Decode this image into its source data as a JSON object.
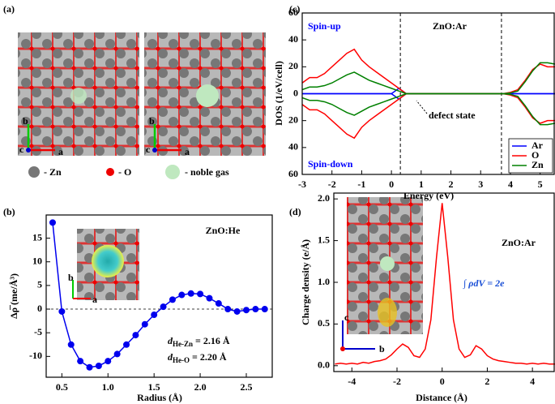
{
  "panel_labels": [
    "(a)",
    "(b)",
    "(c)",
    "(d)"
  ],
  "structure": {
    "axis_labels": [
      "b",
      "c",
      "a"
    ],
    "axis_labels_right": [
      "b",
      "c",
      "a"
    ],
    "legend": [
      "- Zn",
      "- O",
      "- noble gas"
    ]
  },
  "insets": [
    {
      "labels": [
        "b",
        "a"
      ]
    },
    {
      "labels": [
        "c",
        "b"
      ]
    }
  ],
  "chart_data": [
    {
      "type": "line",
      "xlabel": "Energy (eV)",
      "ylabel": "DOS (1/eV/cell)",
      "annotations": [
        "ZnO:Ar",
        "Spin-up",
        "Spin-down",
        "defect state"
      ],
      "x": [
        -3,
        -2.75,
        -2.5,
        -2.25,
        -2,
        -1.75,
        -1.5,
        -1.25,
        -1,
        -0.75,
        -0.5,
        -0.25,
        0,
        0.25,
        0.5,
        0.75,
        1,
        1.25,
        1.5,
        1.75,
        2,
        2.25,
        2.5,
        2.75,
        3,
        3.25,
        3.5,
        3.75,
        4,
        4.25,
        4.5,
        4.75,
        5,
        5.25,
        5.5
      ],
      "series": [
        {
          "name": "Ar",
          "color": "#0000ff",
          "values": [
            0,
            0,
            0,
            0,
            0,
            0,
            0,
            0,
            0,
            0,
            0,
            0,
            0,
            4,
            0,
            0,
            0,
            0,
            0,
            0,
            0,
            0,
            0,
            0,
            0,
            0,
            0,
            0,
            0,
            0,
            0,
            0,
            0,
            0,
            0
          ],
          "values_down": [
            0,
            0,
            0,
            0,
            0,
            0,
            0,
            0,
            0,
            0,
            0,
            0,
            0,
            -4,
            0,
            0,
            0,
            0,
            0,
            0,
            0,
            0,
            0,
            0,
            0,
            0,
            0,
            0,
            0,
            0,
            0,
            0,
            0,
            0,
            0
          ]
        },
        {
          "name": "O",
          "color": "#ff0000",
          "values": [
            8,
            12,
            12,
            15,
            20,
            25,
            30,
            33,
            25,
            20,
            16,
            12,
            8,
            4,
            0,
            0,
            0,
            0,
            0,
            0,
            0,
            0,
            0,
            0,
            0,
            0,
            0,
            0,
            1,
            3,
            10,
            18,
            22,
            20,
            20
          ],
          "values_down": [
            -8,
            -12,
            -12,
            -15,
            -20,
            -25,
            -30,
            -33,
            -25,
            -20,
            -16,
            -12,
            -8,
            -4,
            0,
            0,
            0,
            0,
            0,
            0,
            0,
            0,
            0,
            0,
            0,
            0,
            0,
            0,
            -1,
            -3,
            -10,
            -18,
            -22,
            -20,
            -20
          ]
        },
        {
          "name": "Zn",
          "color": "#008000",
          "values": [
            3,
            5,
            5,
            6,
            8,
            11,
            14,
            16,
            13,
            10,
            8,
            6,
            4,
            2,
            0,
            0,
            0,
            0,
            0,
            0,
            0,
            0,
            0,
            0,
            0,
            0,
            0,
            0,
            0.5,
            2,
            9,
            17,
            23,
            23,
            22
          ],
          "values_down": [
            -3,
            -5,
            -5,
            -6,
            -8,
            -11,
            -14,
            -16,
            -13,
            -10,
            -8,
            -6,
            -4,
            -2,
            0,
            0,
            0,
            0,
            0,
            0,
            0,
            0,
            0,
            0,
            0,
            0,
            0,
            0,
            -0.5,
            -2,
            -9,
            -17,
            -23,
            -23,
            -22
          ]
        }
      ],
      "xlim": [
        -3,
        5.5
      ],
      "xticks": [
        -3,
        -2,
        -1,
        0,
        1,
        2,
        3,
        4,
        5
      ],
      "ylim": [
        -60,
        60
      ],
      "yticks": [
        {
          "value": -60,
          "label": "60"
        },
        {
          "value": -40,
          "label": "40"
        },
        {
          "value": -20,
          "label": "20"
        },
        0,
        20,
        40,
        60
      ],
      "vlines": [
        0.3,
        3.7
      ],
      "legend": "lower right"
    },
    {
      "type": "line",
      "markers": true,
      "xlabel": "Radius (Å)",
      "ylabel": "Δρ̅ (me/Å³)",
      "annotations": [
        "ZnO:He",
        {
          "symbol": "d",
          "sub": "He-Zn",
          "text": " = 2.16 Å"
        },
        {
          "symbol": "d",
          "sub": "He-O",
          "text": " = 2.20 Å"
        }
      ],
      "x": [
        0.4,
        0.5,
        0.6,
        0.7,
        0.8,
        0.9,
        1.0,
        1.1,
        1.2,
        1.3,
        1.4,
        1.5,
        1.6,
        1.7,
        1.8,
        1.9,
        2.0,
        2.1,
        2.2,
        2.3,
        2.4,
        2.5,
        2.6,
        2.7
      ],
      "series": [
        {
          "color": "#0000ee",
          "values": [
            18.3,
            -0.5,
            -7.5,
            -11,
            -12.3,
            -12,
            -11,
            -9.5,
            -7.5,
            -5.5,
            -3.2,
            -1.2,
            0.5,
            2,
            3,
            3.3,
            3.2,
            2.3,
            1.2,
            0,
            -0.5,
            -0.2,
            0,
            0
          ]
        }
      ],
      "xlim": [
        0.33,
        2.79
      ],
      "xticks": [
        0.5,
        {
          "value": 1,
          "label": "1.0"
        },
        1.5,
        {
          "value": 2,
          "label": "2.0"
        },
        2.5
      ],
      "ylim": [
        -14.4,
        19.9
      ],
      "yticks": [
        -10,
        -5,
        0,
        5,
        10,
        15
      ],
      "hlines": [
        0
      ]
    },
    {
      "type": "line",
      "xlabel": "Distance (Å)",
      "ylabel": "Charge density (e/Å)",
      "annotations": [
        "ZnO:Ar",
        "∫ ρdV = 2e"
      ],
      "x": [
        -4.75,
        -4.5,
        -4.25,
        -4,
        -3.75,
        -3.5,
        -3.25,
        -3,
        -2.75,
        -2.5,
        -2.25,
        -2,
        -1.75,
        -1.5,
        -1.25,
        -1,
        -0.75,
        -0.5,
        -0.25,
        0,
        0.25,
        0.5,
        0.75,
        1,
        1.25,
        1.5,
        1.75,
        2,
        2.25,
        2.5,
        2.75,
        3,
        3.25,
        3.5,
        3.75,
        4,
        4.25,
        4.5,
        4.75,
        5
      ],
      "series": [
        {
          "color": "#ff0000",
          "values": [
            0.02,
            0.03,
            0.02,
            0.03,
            0.02,
            0.04,
            0.03,
            0.05,
            0.06,
            0.08,
            0.13,
            0.2,
            0.26,
            0.22,
            0.12,
            0.1,
            0.2,
            0.55,
            1.3,
            1.95,
            1.3,
            0.55,
            0.2,
            0.1,
            0.13,
            0.24,
            0.2,
            0.12,
            0.08,
            0.06,
            0.05,
            0.04,
            0.03,
            0.03,
            0.02,
            0.03,
            0.02,
            0.03,
            0.02,
            0.02
          ]
        }
      ],
      "xlim": [
        -4.8,
        5.0
      ],
      "xticks": [
        -4,
        -2,
        0,
        2,
        4
      ],
      "ylim": [
        -0.07,
        2.07
      ],
      "yticks": [
        {
          "value": 0,
          "label": "0.0"
        },
        0.5,
        {
          "value": 1,
          "label": "1.0"
        },
        1.5,
        {
          "value": 2,
          "label": "2.0"
        }
      ]
    }
  ]
}
